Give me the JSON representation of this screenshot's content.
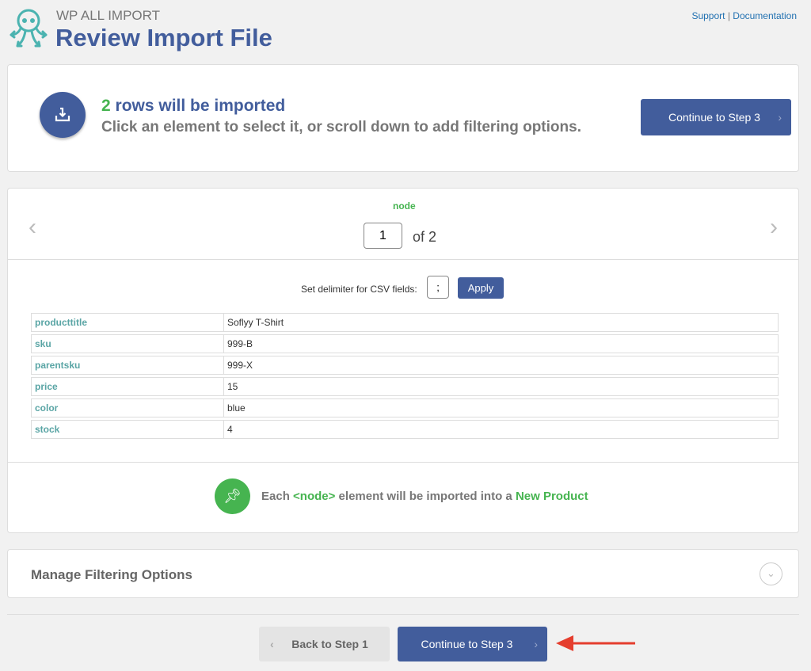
{
  "header": {
    "brand": "WP ALL IMPORT",
    "title": "Review Import File",
    "support": "Support",
    "separator": "|",
    "documentation": "Documentation"
  },
  "summary": {
    "count": "2",
    "rows_text": " rows will be imported",
    "subtitle": "Click an element to select it, or scroll down to add filtering options.",
    "continue_label": "Continue to Step 3"
  },
  "preview": {
    "node_label": "node",
    "page_value": "1",
    "of_text": "of 2",
    "delimiter_label": "Set delimiter for CSV fields:",
    "delimiter_value": ";",
    "apply_label": "Apply",
    "rows": [
      {
        "key": "producttitle",
        "value": "Soflyy T-Shirt"
      },
      {
        "key": "sku",
        "value": "999-B"
      },
      {
        "key": "parentsku",
        "value": "999-X"
      },
      {
        "key": "price",
        "value": "15"
      },
      {
        "key": "color",
        "value": "blue"
      },
      {
        "key": "stock",
        "value": "4"
      }
    ],
    "info_prefix": "Each ",
    "info_node": "<node>",
    "info_middle": " element will be imported into a ",
    "info_type": "New Product"
  },
  "filtering": {
    "title": "Manage Filtering Options"
  },
  "footer": {
    "back_label": "Back to Step 1",
    "continue_label": "Continue to Step 3"
  },
  "colors": {
    "accent": "#425d9c",
    "green": "#46b450",
    "teal": "#5aa5a5",
    "arrow": "#e53e2e"
  }
}
